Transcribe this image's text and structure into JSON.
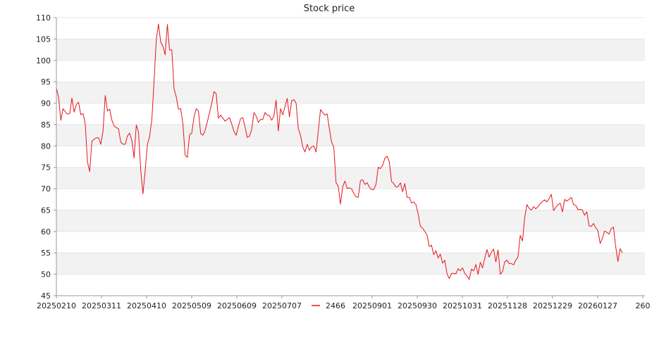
{
  "chart_data": {
    "type": "line",
    "title": "Stock price",
    "xlabel": "",
    "ylabel": "",
    "ylim": [
      45,
      110
    ],
    "y_ticks": [
      45,
      50,
      55,
      60,
      65,
      70,
      75,
      80,
      85,
      90,
      95,
      100,
      105,
      110
    ],
    "x_tick_labels": [
      "20250210",
      "20250311",
      "20250410",
      "20250509",
      "20250609",
      "20250707",
      "20250901",
      "20250930",
      "20251031",
      "20251128",
      "20251229",
      "20260127",
      "260"
    ],
    "grid": "horizontal bands",
    "legend_position": "bottom",
    "colors": {
      "line": "#e8141c",
      "band": "#f2f2f2",
      "axis": "#999999"
    },
    "series": [
      {
        "name": "2466",
        "values": [
          93.4,
          91.4,
          86.0,
          88.7,
          88.0,
          87.4,
          87.6,
          91.2,
          87.9,
          89.7,
          90.2,
          87.3,
          87.6,
          85.2,
          76.3,
          74.0,
          81.1,
          81.6,
          81.9,
          81.9,
          80.4,
          83.4,
          91.8,
          88.2,
          88.6,
          86.0,
          84.7,
          84.3,
          84.0,
          80.9,
          80.4,
          80.4,
          82.3,
          83.0,
          81.3,
          77.2,
          84.9,
          83.2,
          74.3,
          68.8,
          74.1,
          80.3,
          82.2,
          86.1,
          95.1,
          104.8,
          108.5,
          104.3,
          103.3,
          101.3,
          108.4,
          102.4,
          102.5,
          93.4,
          91.5,
          88.6,
          88.7,
          85.2,
          77.9,
          77.3,
          82.6,
          83.0,
          86.7,
          88.7,
          88.2,
          82.9,
          82.5,
          83.6,
          85.6,
          87.8,
          90.0,
          92.7,
          92.2,
          86.5,
          87.2,
          86.5,
          85.8,
          86.2,
          86.6,
          85.1,
          83.4,
          82.5,
          84.6,
          86.4,
          86.6,
          84.4,
          82.0,
          82.3,
          83.8,
          87.8,
          87.0,
          85.5,
          86.2,
          86.2,
          87.8,
          87.2,
          87.1,
          86.0,
          87.0,
          90.7,
          83.5,
          88.7,
          87.3,
          89.2,
          91.1,
          86.8,
          90.6,
          90.8,
          90.0,
          84.0,
          82.5,
          79.8,
          78.6,
          80.4,
          79.0,
          79.8,
          80.0,
          78.6,
          83.4,
          88.5,
          87.8,
          87.2,
          87.5,
          84.0,
          80.9,
          79.7,
          71.4,
          70.6,
          66.4,
          70.5,
          71.8,
          70.1,
          70.2,
          70.0,
          68.9,
          68.1,
          68.0,
          71.9,
          72.1,
          71.0,
          71.4,
          70.4,
          69.8,
          69.8,
          71.0,
          75.0,
          74.7,
          75.5,
          77.1,
          77.6,
          76.3,
          71.7,
          71.2,
          70.4,
          70.5,
          71.4,
          69.3,
          71.2,
          68.0,
          68.0,
          66.7,
          66.9,
          66.3,
          64.1,
          61.2,
          60.8,
          60.0,
          59.2,
          56.5,
          56.8,
          54.6,
          55.5,
          53.8,
          54.7,
          52.6,
          53.3,
          50.1,
          49.0,
          50.2,
          50.2,
          50.1,
          51.3,
          50.8,
          51.5,
          50.2,
          49.6,
          48.8,
          51.2,
          50.8,
          52.3,
          50.0,
          52.8,
          51.5,
          53.7,
          55.8,
          54.0,
          55.2,
          55.9,
          52.9,
          55.7,
          50.0,
          50.6,
          52.9,
          53.3,
          52.5,
          52.5,
          52.2,
          53.3,
          54.1,
          59.1,
          57.8,
          63.2,
          66.3,
          65.4,
          65.0,
          65.8,
          65.3,
          65.8,
          66.5,
          67.0,
          67.4,
          66.9,
          67.7,
          68.7,
          64.9,
          65.6,
          66.3,
          66.6,
          64.6,
          67.5,
          67.1,
          67.5,
          68.0,
          66.3,
          66.1,
          65.1,
          65.2,
          65.0,
          63.8,
          64.6,
          61.3,
          61.2,
          61.9,
          60.9,
          60.2,
          57.2,
          58.4,
          60.1,
          59.8,
          59.4,
          60.7,
          61.0,
          56.5,
          53.0,
          56.0,
          55.0
        ]
      }
    ]
  }
}
